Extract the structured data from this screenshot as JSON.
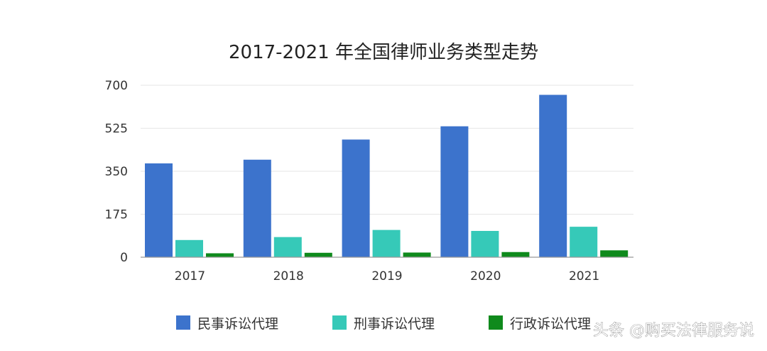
{
  "chart_data": {
    "type": "bar",
    "title": "2017-2021 年全国律师业务类型走势",
    "xlabel": "",
    "ylabel": "",
    "categories": [
      "2017",
      "2018",
      "2019",
      "2020",
      "2021"
    ],
    "ylim": [
      0,
      700
    ],
    "yticks": [
      0,
      175,
      350,
      525,
      700
    ],
    "grid": true,
    "legend_position": "bottom",
    "series": [
      {
        "name": "民事诉讼代理",
        "color": "#3c73cc",
        "values": [
          382,
          397,
          479,
          533,
          661
        ]
      },
      {
        "name": "刑事诉讼代理",
        "color": "#36c9b8",
        "values": [
          70,
          82,
          111,
          107,
          124
        ]
      },
      {
        "name": "行政诉讼代理",
        "color": "#0f8a1c",
        "values": [
          16,
          18,
          19,
          21,
          28
        ]
      }
    ]
  },
  "watermark": {
    "text": "头条 @购买法律服务说"
  }
}
